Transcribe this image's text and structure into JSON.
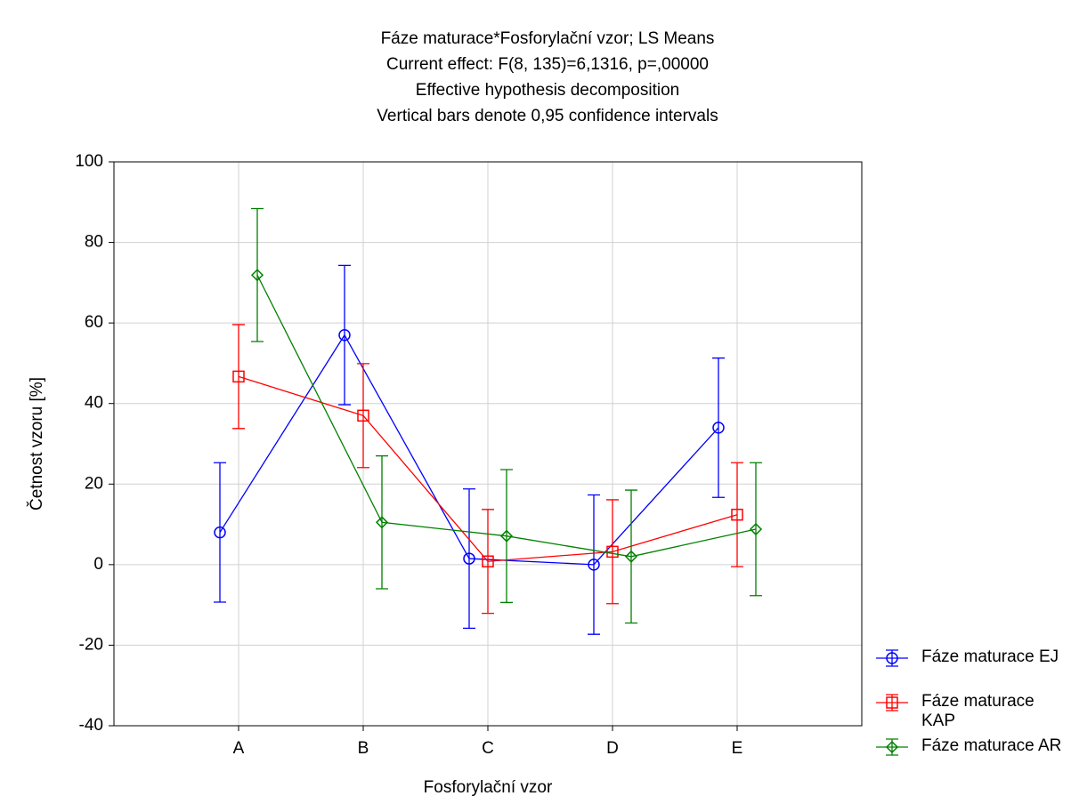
{
  "chart_data": {
    "type": "line_errorbar",
    "title_lines": [
      "Fáze maturace*Fosforylační vzor; LS Means",
      "Current effect: F(8, 135)=6,1316, p=,00000",
      "Effective hypothesis decomposition",
      "Vertical bars denote 0,95 confidence intervals"
    ],
    "x_label": "Fosforylační vzor",
    "y_label": "Četnost vzoru [%]",
    "categories": [
      "A",
      "B",
      "C",
      "D",
      "E"
    ],
    "series": [
      {
        "name": "Fáze maturace EJ",
        "color": "#0000ff",
        "marker": "circle",
        "values": [
          8,
          57,
          1.5,
          0,
          34
        ],
        "errors": [
          17.3,
          17.3,
          17.3,
          17.3,
          17.3
        ]
      },
      {
        "name": "Fáze maturace KAP",
        "color": "#ff0000",
        "marker": "square",
        "values": [
          46.7,
          37,
          0.8,
          3.2,
          12.4
        ],
        "errors": [
          12.9,
          12.9,
          12.9,
          12.9,
          12.9
        ]
      },
      {
        "name": "Fáze maturace AR",
        "color": "#008000",
        "marker": "diamond",
        "values": [
          71.9,
          10.5,
          7.1,
          2,
          8.8
        ],
        "errors": [
          16.5,
          16.5,
          16.5,
          16.5,
          16.5
        ]
      }
    ],
    "ylim": [
      -40,
      100
    ],
    "yticks": [
      -40,
      -20,
      0,
      20,
      40,
      60,
      80,
      100
    ],
    "grid": true,
    "legend": "outside lower right"
  }
}
